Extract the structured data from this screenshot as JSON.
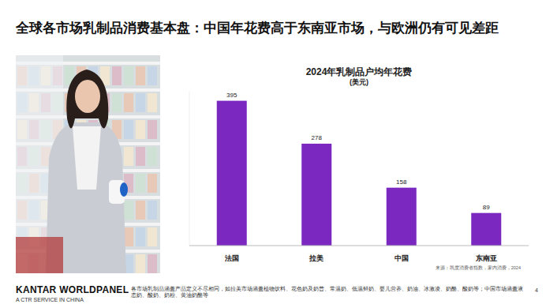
{
  "page": {
    "title": "全球各市场乳制品消费基本盘：中国年花费高于东南亚市场，与欧洲仍有可见差距",
    "logo": "KANTAR WORLDPANEL",
    "tagline": "A CTR SERVICE IN CHINA",
    "footnote": "各市场乳制品涵盖产品定义不尽相同，如拉美市场涵盖植物饮料、花色奶及奶昔、常温奶、低温鲜奶、婴儿营养、奶油、冰激凌、奶酪、酸奶等；中国市场涵盖液态奶、酸奶、奶粉、黄油奶酪等",
    "page_number": "4"
  },
  "chart_data": {
    "type": "bar",
    "title": "2024年乳制品户均年花费",
    "subtitle": "(美元)",
    "categories": [
      "法国",
      "拉美",
      "中国",
      "东南亚"
    ],
    "values": [
      395,
      278,
      158,
      89
    ],
    "color": "#7a28c0",
    "ylim": [
      0,
      420
    ],
    "tick_labels": "x",
    "data_labels": true,
    "grid": false,
    "source": "来源：凯度消费者指数，家内消费，2024"
  }
}
